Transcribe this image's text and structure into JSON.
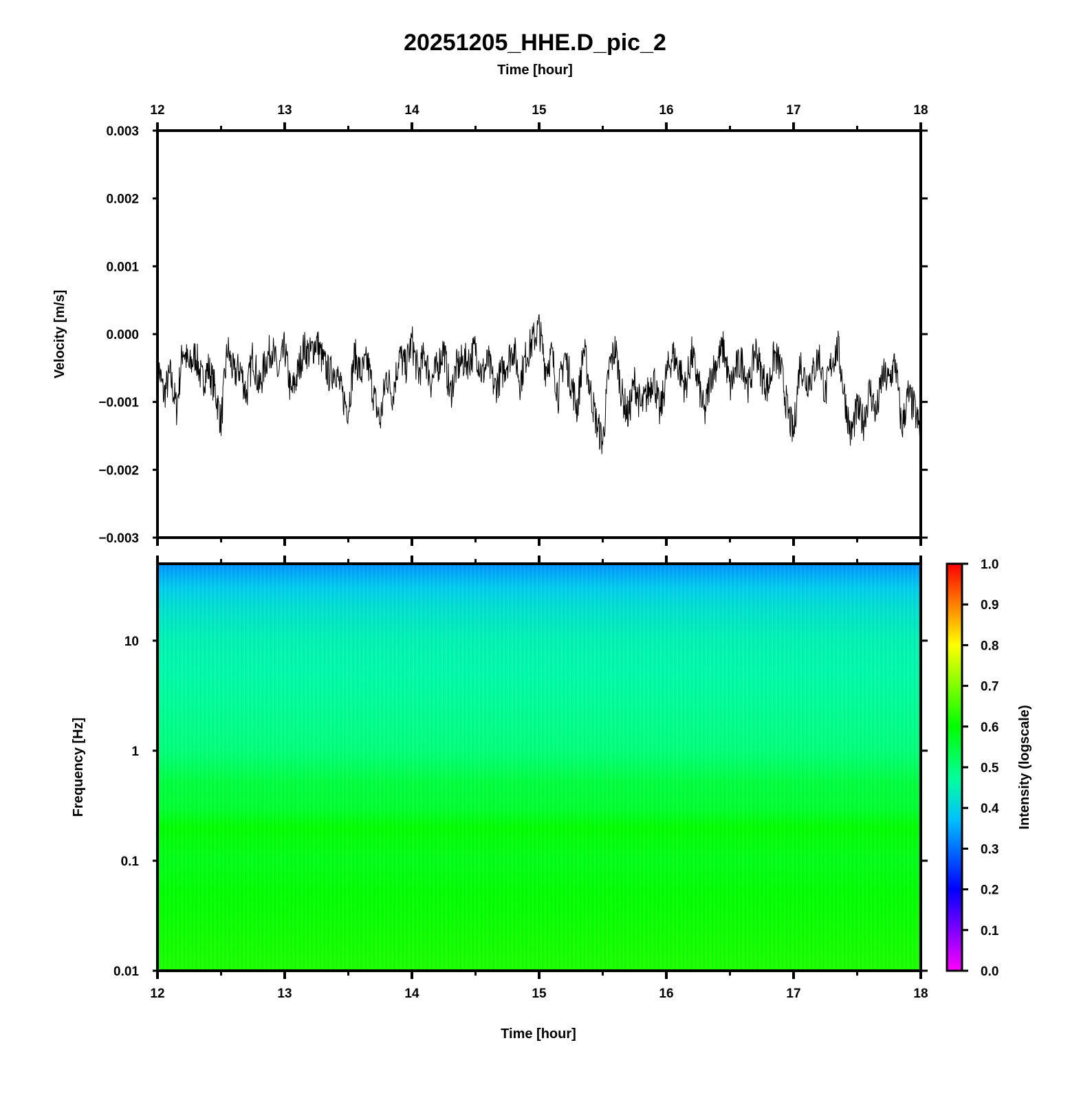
{
  "figure_title": "20251205_HHE.D_pic_2",
  "chart_data": [
    {
      "type": "line",
      "panel": "waveform",
      "title": "20251205_HHE.D_pic_2",
      "xlabel": "Time [hour]",
      "ylabel": "Velocity [m/s]",
      "xlim": [
        12,
        18
      ],
      "ylim": [
        -0.003,
        0.003
      ],
      "x_ticks": [
        "12",
        "13",
        "14",
        "15",
        "16",
        "17",
        "18"
      ],
      "x_tick_values": [
        12,
        13,
        14,
        15,
        16,
        17,
        18
      ],
      "y_ticks": [
        "0.003",
        "0.002",
        "0.001",
        "0.000",
        "−0.001",
        "−0.002",
        "−0.003"
      ],
      "y_tick_values": [
        0.003,
        0.002,
        0.001,
        0.0,
        -0.001,
        -0.002,
        -0.003
      ],
      "grid": false,
      "line_color": "#000000",
      "series": [
        {
          "x": [
            12.0,
            12.05,
            12.1,
            12.15,
            12.2,
            12.25,
            12.3,
            12.35,
            12.4,
            12.45,
            12.5,
            12.55,
            12.6,
            12.65,
            12.7,
            12.75,
            12.8,
            12.85,
            12.9,
            12.95,
            13.0,
            13.05,
            13.1,
            13.15,
            13.2,
            13.25,
            13.3,
            13.35,
            13.4,
            13.45,
            13.5,
            13.55,
            13.6,
            13.65,
            13.7,
            13.75,
            13.8,
            13.85,
            13.9,
            13.95,
            14.0,
            14.05,
            14.1,
            14.15,
            14.2,
            14.25,
            14.3,
            14.35,
            14.4,
            14.45,
            14.5,
            14.55,
            14.6,
            14.65,
            14.7,
            14.75,
            14.8,
            14.85,
            14.9,
            14.95,
            15.0,
            15.05,
            15.1,
            15.15,
            15.2,
            15.25,
            15.3,
            15.35,
            15.4,
            15.45,
            15.5,
            15.55,
            15.6,
            15.65,
            15.7,
            15.75,
            15.8,
            15.85,
            15.9,
            15.95,
            16.0,
            16.05,
            16.1,
            16.15,
            16.2,
            16.25,
            16.3,
            16.35,
            16.4,
            16.45,
            16.5,
            16.55,
            16.6,
            16.65,
            16.7,
            16.75,
            16.8,
            16.85,
            16.9,
            16.95,
            17.0,
            17.05,
            17.1,
            17.15,
            17.2,
            17.25,
            17.3,
            17.35,
            17.4,
            17.45,
            17.5,
            17.55,
            17.6,
            17.65,
            17.7,
            17.75,
            17.8,
            17.85,
            17.9,
            17.95,
            18.0
          ],
          "values": [
            -0.0004,
            -0.0009,
            -0.0006,
            -0.0011,
            -0.0002,
            -0.0005,
            -0.0003,
            -0.0007,
            -0.0005,
            -0.0008,
            -0.0013,
            -0.0002,
            -0.0006,
            -0.0005,
            -0.0009,
            -0.0003,
            -0.0008,
            -0.0004,
            -0.0002,
            -0.0006,
            -0.0002,
            -0.0009,
            -0.0006,
            -0.0002,
            -0.0003,
            -0.0001,
            -0.0004,
            -0.0006,
            -0.0005,
            -0.0009,
            -0.0011,
            -0.0003,
            -0.0006,
            -0.0004,
            -0.0009,
            -0.0013,
            -0.0006,
            -0.0009,
            -0.0003,
            -0.0005,
            -0.0001,
            -0.0006,
            -0.0003,
            -0.0007,
            -0.0005,
            -0.0002,
            -0.0009,
            -0.0005,
            -0.0004,
            -0.0004,
            -0.0002,
            -0.0006,
            -0.0004,
            -0.0008,
            -0.0006,
            -0.0004,
            -0.0002,
            -0.0007,
            -0.0003,
            -0.0001,
            0.0001,
            -0.0005,
            -0.0003,
            -0.0009,
            -0.0003,
            -0.0007,
            -0.0011,
            -0.0002,
            -0.0008,
            -0.0013,
            -0.0016,
            -0.0005,
            -0.0002,
            -0.0009,
            -0.0012,
            -0.0007,
            -0.0011,
            -0.0009,
            -0.0006,
            -0.0012,
            -0.0006,
            -0.0003,
            -0.0005,
            -0.0008,
            -0.0003,
            -0.0007,
            -0.0012,
            -0.0006,
            -0.0004,
            -0.0002,
            -0.0008,
            -0.0005,
            -0.0004,
            -0.0008,
            -0.0002,
            -0.0006,
            -0.0008,
            -0.0003,
            -0.0005,
            -0.0011,
            -0.0015,
            -0.0004,
            -0.0007,
            -0.0006,
            -0.0003,
            -0.0009,
            -0.0004,
            -0.0002,
            -0.0009,
            -0.0015,
            -0.0011,
            -0.0013,
            -0.0008,
            -0.0012,
            -0.0006,
            -0.0007,
            -0.0004,
            -0.0014,
            -0.0009,
            -0.0011,
            -0.0015
          ]
        }
      ]
    },
    {
      "type": "heatmap",
      "panel": "spectrogram",
      "xlabel": "Time [hour]",
      "ylabel": "Frequency [Hz]",
      "xlim": [
        12,
        18
      ],
      "ylim": [
        0.01,
        50
      ],
      "y_scale": "log",
      "x_ticks": [
        "12",
        "13",
        "14",
        "15",
        "16",
        "17",
        "18"
      ],
      "x_tick_values": [
        12,
        13,
        14,
        15,
        16,
        17,
        18
      ],
      "y_ticks": [
        "10",
        "1",
        "0.1",
        "0.01"
      ],
      "y_tick_values": [
        10,
        1,
        0.1,
        0.01
      ],
      "colorbar": {
        "label": "Intensity (logscale)",
        "range": [
          0.0,
          1.0
        ],
        "ticks": [
          "1.0",
          "0.9",
          "0.8",
          "0.7",
          "0.6",
          "0.5",
          "0.4",
          "0.3",
          "0.2",
          "0.1",
          "0.0"
        ],
        "tick_values": [
          1.0,
          0.9,
          0.8,
          0.7,
          0.6,
          0.5,
          0.4,
          0.3,
          0.2,
          0.1,
          0.0
        ],
        "colormap": [
          "#ff00ff",
          "#0000ff",
          "#00bfff",
          "#00ff9f",
          "#00ff00",
          "#ffff00",
          "#ff0000"
        ]
      },
      "intensity_profile": {
        "frequency": [
          50,
          30,
          20,
          10,
          5,
          1,
          0.5,
          0.3,
          0.2,
          0.1,
          0.05,
          0.01
        ],
        "intensity": [
          0.33,
          0.39,
          0.42,
          0.45,
          0.46,
          0.5,
          0.55,
          0.56,
          0.6,
          0.58,
          0.6,
          0.62
        ]
      }
    }
  ]
}
